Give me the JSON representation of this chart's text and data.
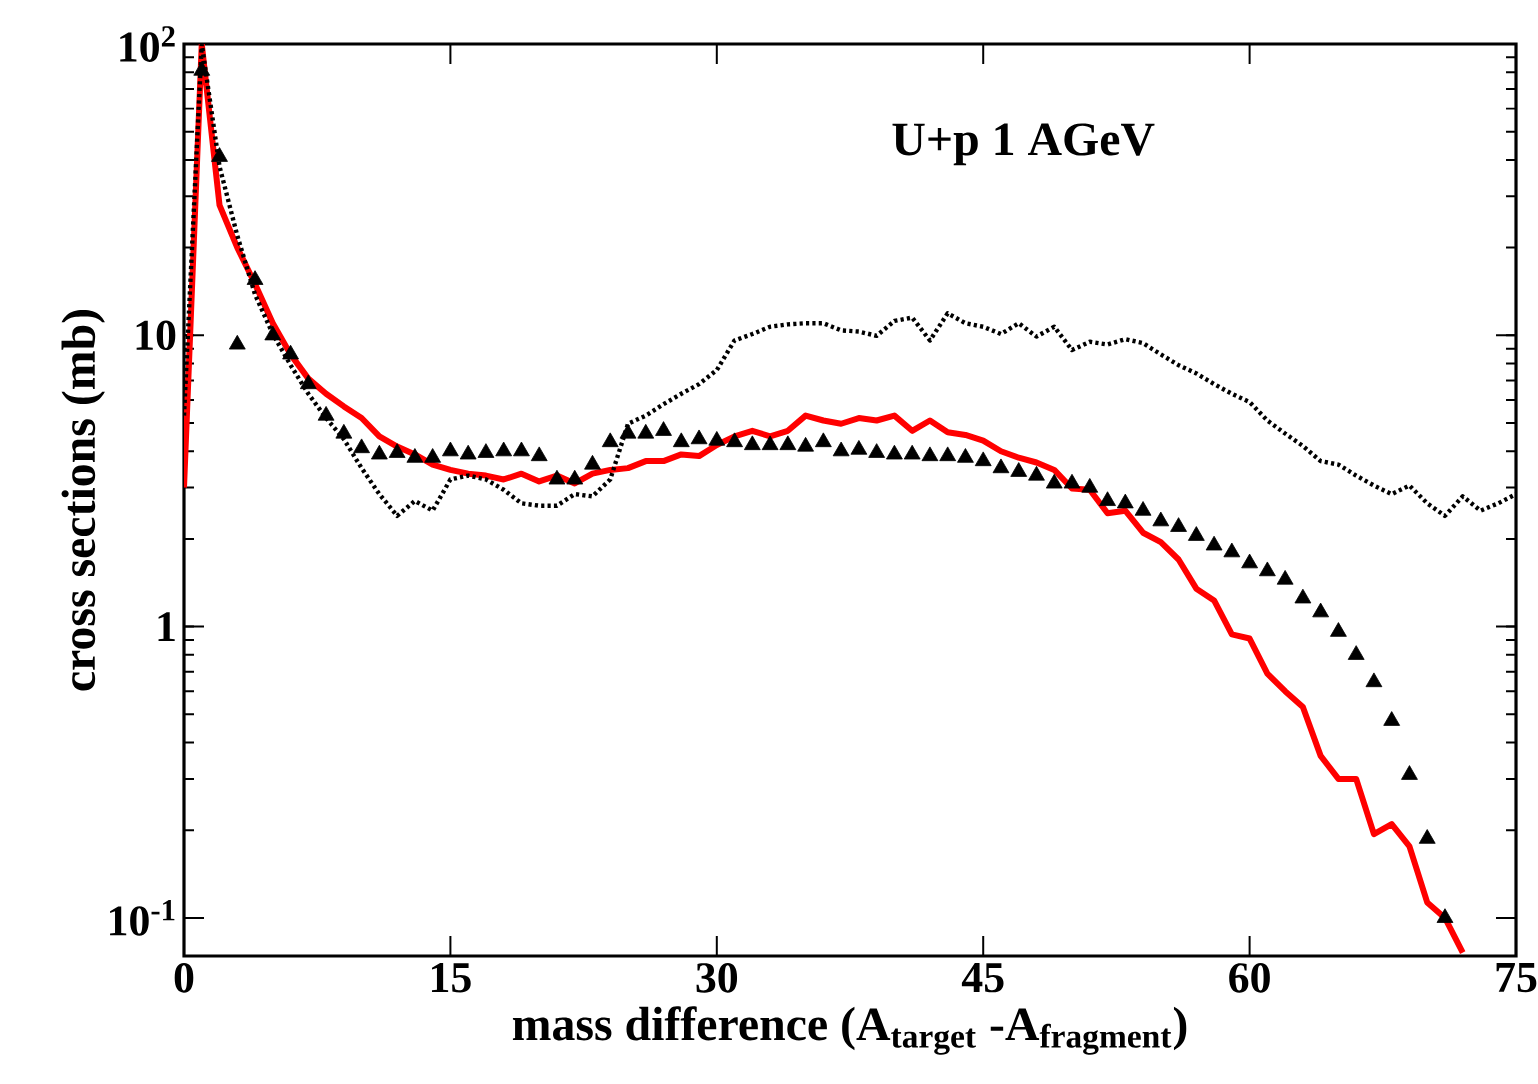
{
  "chart_data": {
    "type": "line",
    "title": "U+p 1 AGeV",
    "xlabel": "mass difference  (A$_{target}$ -A$_{fragment}$)",
    "ylabel": "cross sections  (mb)",
    "log": "y",
    "xlim": [
      0,
      75
    ],
    "ylim": [
      0.074,
      100
    ],
    "xticks": [
      0,
      15,
      30,
      45,
      60,
      75
    ],
    "yticks": [
      {
        "value": 0.1,
        "label": "10$^{-1}$"
      },
      {
        "value": 1,
        "label": "1"
      },
      {
        "value": 10,
        "label": "10"
      },
      {
        "value": 100,
        "label": "10$^{2}$"
      }
    ],
    "series": [
      {
        "type": "scatter",
        "marker": "triangle",
        "color": "#000000",
        "x": [
          1,
          2,
          3,
          4,
          5,
          6,
          7,
          8,
          9,
          10,
          11,
          12,
          13,
          14,
          15,
          16,
          17,
          18,
          19,
          20,
          21,
          22,
          23,
          24,
          25,
          26,
          27,
          28,
          29,
          30,
          31,
          32,
          33,
          34,
          35,
          36,
          37,
          38,
          39,
          40,
          41,
          42,
          43,
          44,
          45,
          46,
          47,
          48,
          49,
          50,
          51,
          52,
          53,
          54,
          55,
          56,
          57,
          58,
          59,
          60,
          61,
          62,
          63,
          64,
          65,
          66,
          67,
          68,
          69,
          70,
          71
        ],
        "values": [
          81,
          41,
          9.3,
          15.5,
          10,
          8.6,
          6.8,
          5.3,
          4.6,
          4.1,
          3.9,
          3.95,
          3.8,
          3.8,
          4.0,
          3.9,
          3.95,
          4.0,
          4.0,
          3.85,
          3.2,
          3.2,
          3.6,
          4.3,
          4.6,
          4.6,
          4.7,
          4.3,
          4.4,
          4.35,
          4.3,
          4.2,
          4.2,
          4.2,
          4.15,
          4.3,
          4.0,
          4.05,
          3.95,
          3.9,
          3.9,
          3.85,
          3.85,
          3.8,
          3.7,
          3.5,
          3.4,
          3.3,
          3.1,
          3.1,
          3.0,
          2.7,
          2.65,
          2.5,
          2.3,
          2.2,
          2.05,
          1.9,
          1.8,
          1.65,
          1.55,
          1.45,
          1.25,
          1.12,
          0.96,
          0.8,
          0.645,
          0.475,
          0.31,
          0.187,
          0.1
        ]
      },
      {
        "line_style": "solid",
        "color": "#ff0000",
        "x": [
          0,
          1,
          2,
          3,
          4,
          5,
          6,
          7,
          8,
          9,
          10,
          11,
          12,
          13,
          14,
          15,
          16,
          17,
          18,
          19,
          20,
          21,
          22,
          23,
          24,
          25,
          26,
          27,
          28,
          29,
          30,
          31,
          32,
          33,
          34,
          35,
          36,
          37,
          38,
          39,
          40,
          41,
          42,
          43,
          44,
          45,
          46,
          47,
          48,
          49,
          50,
          51,
          52,
          53,
          54,
          55,
          56,
          57,
          58,
          59,
          60,
          61,
          62,
          63,
          64,
          65,
          66,
          67,
          68,
          69,
          70,
          71,
          72
        ],
        "values": [
          3,
          100,
          28,
          20,
          15,
          11,
          8.6,
          7.1,
          6.3,
          5.7,
          5.2,
          4.5,
          4.15,
          3.9,
          3.6,
          3.45,
          3.35,
          3.3,
          3.2,
          3.35,
          3.15,
          3.3,
          3.1,
          3.35,
          3.45,
          3.5,
          3.7,
          3.7,
          3.9,
          3.85,
          4.2,
          4.5,
          4.7,
          4.5,
          4.7,
          5.3,
          5.1,
          4.97,
          5.2,
          5.1,
          5.3,
          4.7,
          5.1,
          4.65,
          4.55,
          4.35,
          4.0,
          3.8,
          3.66,
          3.45,
          2.98,
          2.95,
          2.45,
          2.5,
          2.1,
          1.95,
          1.7,
          1.35,
          1.23,
          0.94,
          0.91,
          0.69,
          0.6,
          0.53,
          0.36,
          0.3,
          0.3,
          0.194,
          0.21,
          0.176,
          0.113,
          0.1,
          0.076
        ]
      },
      {
        "line_style": "dotted",
        "color": "#000000",
        "x": [
          0,
          1,
          2,
          3,
          4,
          5,
          6,
          7,
          8,
          9,
          10,
          11,
          12,
          13,
          14,
          15,
          16,
          17,
          18,
          19,
          20,
          21,
          22,
          23,
          24,
          25,
          26,
          27,
          28,
          29,
          30,
          31,
          32,
          33,
          34,
          35,
          36,
          37,
          38,
          39,
          40,
          41,
          42,
          43,
          44,
          45,
          46,
          47,
          48,
          49,
          50,
          51,
          52,
          53,
          54,
          55,
          56,
          57,
          58,
          59,
          60,
          61,
          62,
          63,
          64,
          65,
          66,
          67,
          68,
          69,
          70,
          71,
          72,
          73,
          74,
          75
        ],
        "values": [
          5.3,
          100,
          38,
          22,
          13.8,
          10.1,
          7.9,
          6.3,
          5.2,
          4.4,
          3.5,
          2.85,
          2.4,
          2.7,
          2.5,
          3.2,
          3.3,
          3.2,
          2.95,
          2.65,
          2.6,
          2.6,
          2.85,
          2.8,
          3.2,
          4.97,
          5.3,
          5.8,
          6.3,
          6.8,
          7.6,
          9.6,
          10.1,
          10.7,
          10.9,
          11.0,
          11.0,
          10.4,
          10.3,
          9.96,
          11.2,
          11.5,
          9.6,
          11.9,
          11.0,
          10.7,
          10.1,
          11.0,
          9.9,
          10.7,
          8.9,
          9.5,
          9.3,
          9.7,
          9.4,
          8.6,
          7.9,
          7.4,
          6.8,
          6.3,
          5.9,
          5.1,
          4.6,
          4.17,
          3.7,
          3.6,
          3.3,
          3.05,
          2.85,
          3.05,
          2.65,
          2.4,
          2.8,
          2.5,
          2.65,
          2.85
        ]
      }
    ]
  }
}
